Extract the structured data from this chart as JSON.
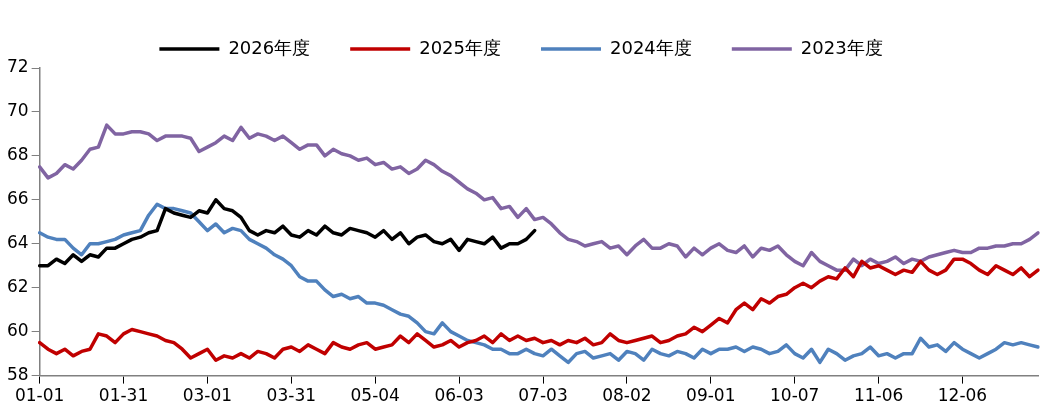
{
  "chart_data": {
    "type": "line",
    "categories": [
      "01-01",
      null,
      null,
      null,
      null,
      null,
      null,
      null,
      null,
      null,
      "01-31",
      null,
      null,
      null,
      null,
      null,
      null,
      null,
      null,
      null,
      "03-01",
      null,
      null,
      null,
      null,
      null,
      null,
      null,
      null,
      null,
      "03-31",
      null,
      null,
      null,
      null,
      null,
      null,
      null,
      null,
      null,
      "05-04",
      null,
      null,
      null,
      null,
      null,
      null,
      null,
      null,
      null,
      "06-03",
      null,
      null,
      null,
      null,
      null,
      null,
      null,
      null,
      null,
      "07-03",
      null,
      null,
      null,
      null,
      null,
      null,
      null,
      null,
      null,
      "08-02",
      null,
      null,
      null,
      null,
      null,
      null,
      null,
      null,
      null,
      "09-01",
      null,
      null,
      null,
      null,
      null,
      null,
      null,
      null,
      null,
      "10-07",
      null,
      null,
      null,
      null,
      null,
      null,
      null,
      null,
      null,
      "11-06",
      null,
      null,
      null,
      null,
      null,
      null,
      null,
      null,
      null,
      "12-06",
      null,
      null,
      null,
      null,
      null,
      null,
      null,
      null,
      null
    ],
    "series": [
      {
        "name": "2026年度",
        "color": "#000000",
        "values": [
          63.0,
          63.0,
          63.3,
          63.1,
          63.5,
          63.2,
          63.5,
          63.4,
          63.8,
          63.8,
          64.0,
          64.2,
          64.3,
          64.5,
          64.6,
          65.6,
          65.4,
          65.3,
          65.2,
          65.5,
          65.4,
          66.0,
          65.6,
          65.5,
          65.2,
          64.6,
          64.4,
          64.6,
          64.5,
          64.8,
          64.4,
          64.3,
          64.6,
          64.4,
          64.8,
          64.5,
          64.4,
          64.7,
          64.6,
          64.5,
          64.3,
          64.6,
          64.2,
          64.5,
          64.0,
          64.3,
          64.4,
          64.1,
          64.0,
          64.2,
          63.7,
          64.2,
          64.1,
          64.0,
          64.3,
          63.8,
          64.0,
          64.0,
          64.2,
          64.6,
          null,
          null,
          null,
          null,
          null,
          null,
          null,
          null,
          null,
          null,
          null,
          null,
          null,
          null,
          null,
          null,
          null,
          null,
          null,
          null,
          null,
          null,
          null,
          null,
          null,
          null,
          null,
          null,
          null,
          null,
          null,
          null,
          null,
          null,
          null,
          null,
          null,
          null,
          null,
          null,
          null,
          null,
          null,
          null,
          null,
          null,
          null,
          null,
          null,
          null,
          null,
          null,
          null,
          null,
          null,
          null,
          null,
          null,
          null,
          null
        ]
      },
      {
        "name": "2025年度",
        "color": "#c00000",
        "values": [
          59.5,
          59.2,
          59.0,
          59.2,
          58.9,
          59.1,
          59.2,
          59.9,
          59.8,
          59.5,
          59.9,
          60.1,
          60.0,
          59.9,
          59.8,
          59.6,
          59.5,
          59.2,
          58.8,
          59.0,
          59.2,
          58.7,
          58.9,
          58.8,
          59.0,
          58.8,
          59.1,
          59.0,
          58.8,
          59.2,
          59.3,
          59.1,
          59.4,
          59.2,
          59.0,
          59.5,
          59.3,
          59.2,
          59.4,
          59.5,
          59.2,
          59.3,
          59.4,
          59.8,
          59.5,
          59.9,
          59.6,
          59.3,
          59.4,
          59.6,
          59.3,
          59.5,
          59.6,
          59.8,
          59.5,
          59.9,
          59.6,
          59.8,
          59.6,
          59.7,
          59.5,
          59.6,
          59.4,
          59.6,
          59.5,
          59.7,
          59.4,
          59.5,
          59.9,
          59.6,
          59.5,
          59.6,
          59.7,
          59.8,
          59.5,
          59.6,
          59.8,
          59.9,
          60.2,
          60.0,
          60.3,
          60.6,
          60.4,
          61.0,
          61.3,
          61.0,
          61.5,
          61.3,
          61.6,
          61.7,
          62.0,
          62.2,
          62.0,
          62.3,
          62.5,
          62.4,
          62.9,
          62.5,
          63.2,
          62.9,
          63.0,
          62.8,
          62.6,
          62.8,
          62.7,
          63.2,
          62.8,
          62.6,
          62.8,
          63.3,
          63.3,
          63.1,
          62.8,
          62.6,
          63.0,
          62.8,
          62.6,
          62.9,
          62.5,
          62.8
        ]
      },
      {
        "name": "2024年度",
        "color": "#4f81bd",
        "values": [
          64.5,
          64.3,
          64.2,
          64.2,
          63.8,
          63.5,
          64.0,
          64.0,
          64.1,
          64.2,
          64.4,
          64.5,
          64.6,
          65.3,
          65.8,
          65.6,
          65.6,
          65.5,
          65.4,
          65.0,
          64.6,
          64.9,
          64.5,
          64.7,
          64.6,
          64.2,
          64.0,
          63.8,
          63.5,
          63.3,
          63.0,
          62.5,
          62.3,
          62.3,
          61.9,
          61.6,
          61.7,
          61.5,
          61.6,
          61.3,
          61.3,
          61.2,
          61.0,
          60.8,
          60.7,
          60.4,
          60.0,
          59.9,
          60.4,
          60.0,
          59.8,
          59.6,
          59.5,
          59.4,
          59.2,
          59.2,
          59.0,
          59.0,
          59.2,
          59.0,
          58.9,
          59.2,
          58.9,
          58.6,
          59.0,
          59.1,
          58.8,
          58.9,
          59.0,
          58.7,
          59.1,
          59.0,
          58.7,
          59.2,
          59.0,
          58.9,
          59.1,
          59.0,
          58.8,
          59.2,
          59.0,
          59.2,
          59.2,
          59.3,
          59.1,
          59.3,
          59.2,
          59.0,
          59.1,
          59.4,
          59.0,
          58.8,
          59.2,
          58.6,
          59.2,
          59.0,
          58.7,
          58.9,
          59.0,
          59.3,
          58.9,
          59.0,
          58.8,
          59.0,
          59.0,
          59.7,
          59.3,
          59.4,
          59.1,
          59.5,
          59.2,
          59.0,
          58.8,
          59.0,
          59.2,
          59.5,
          59.4,
          59.5,
          59.4,
          59.3
        ]
      },
      {
        "name": "2023年度",
        "color": "#8064a2",
        "values": [
          67.5,
          67.0,
          67.2,
          67.6,
          67.4,
          67.8,
          68.3,
          68.4,
          69.4,
          69.0,
          69.0,
          69.1,
          69.1,
          69.0,
          68.7,
          68.9,
          68.9,
          68.9,
          68.8,
          68.2,
          68.4,
          68.6,
          68.9,
          68.7,
          69.3,
          68.8,
          69.0,
          68.9,
          68.7,
          68.9,
          68.6,
          68.3,
          68.5,
          68.5,
          68.0,
          68.3,
          68.1,
          68.0,
          67.8,
          67.9,
          67.6,
          67.7,
          67.4,
          67.5,
          67.2,
          67.4,
          67.8,
          67.6,
          67.3,
          67.1,
          66.8,
          66.5,
          66.3,
          66.0,
          66.1,
          65.6,
          65.7,
          65.2,
          65.6,
          65.1,
          65.2,
          64.9,
          64.5,
          64.2,
          64.1,
          63.9,
          64.0,
          64.1,
          63.8,
          63.9,
          63.5,
          63.9,
          64.2,
          63.8,
          63.8,
          64.0,
          63.9,
          63.4,
          63.8,
          63.5,
          63.8,
          64.0,
          63.7,
          63.6,
          63.9,
          63.4,
          63.8,
          63.7,
          63.9,
          63.5,
          63.2,
          63.0,
          63.6,
          63.2,
          63.0,
          62.8,
          62.8,
          63.3,
          63.0,
          63.3,
          63.1,
          63.2,
          63.4,
          63.1,
          63.3,
          63.2,
          63.4,
          63.5,
          63.6,
          63.7,
          63.6,
          63.6,
          63.8,
          63.8,
          63.9,
          63.9,
          64.0,
          64.0,
          64.2,
          64.5
        ]
      }
    ],
    "ylim": [
      58,
      72
    ],
    "yticks": [
      58,
      60,
      62,
      64,
      66,
      68,
      70,
      72
    ],
    "grid": false,
    "legend": "top",
    "marker": "none",
    "line_style": "solid"
  }
}
